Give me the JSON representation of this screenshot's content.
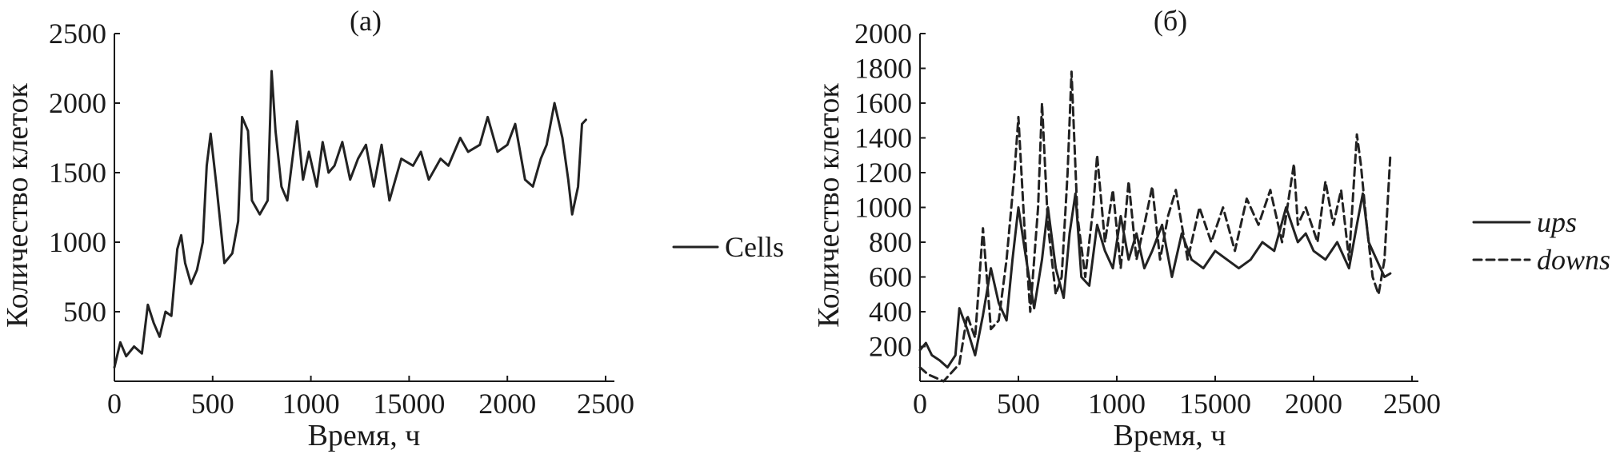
{
  "chart_data": [
    {
      "type": "line",
      "title": "(а)",
      "xlabel": "Время, ч",
      "ylabel": "Количество клеток",
      "xlim": [
        0,
        2500
      ],
      "ylim": [
        0,
        2500
      ],
      "x_ticks": [
        "0",
        "500",
        "1000",
        "15000",
        "2000",
        "2500"
      ],
      "y_ticks": [
        "500",
        "1000",
        "1500",
        "2000",
        "2500"
      ],
      "legend_position": "right",
      "series": [
        {
          "name": "Cells",
          "style": "solid",
          "x": [
            0,
            30,
            60,
            100,
            140,
            170,
            200,
            230,
            260,
            290,
            320,
            340,
            360,
            390,
            420,
            450,
            470,
            490,
            520,
            560,
            600,
            630,
            650,
            680,
            700,
            740,
            780,
            800,
            820,
            850,
            880,
            930,
            960,
            990,
            1030,
            1060,
            1090,
            1120,
            1160,
            1200,
            1240,
            1280,
            1320,
            1360,
            1400,
            1460,
            1520,
            1560,
            1600,
            1660,
            1700,
            1760,
            1800,
            1860,
            1900,
            1950,
            2000,
            2040,
            2090,
            2130,
            2170,
            2200,
            2240,
            2280,
            2310,
            2330,
            2360,
            2380,
            2400
          ],
          "y": [
            100,
            280,
            180,
            250,
            200,
            550,
            420,
            320,
            500,
            470,
            950,
            1050,
            850,
            700,
            800,
            1000,
            1550,
            1780,
            1400,
            850,
            920,
            1150,
            1900,
            1800,
            1300,
            1200,
            1300,
            2230,
            1800,
            1400,
            1300,
            1870,
            1450,
            1650,
            1400,
            1720,
            1500,
            1550,
            1720,
            1450,
            1600,
            1700,
            1400,
            1700,
            1300,
            1600,
            1550,
            1650,
            1450,
            1600,
            1550,
            1750,
            1650,
            1700,
            1900,
            1650,
            1700,
            1850,
            1450,
            1400,
            1600,
            1700,
            2000,
            1750,
            1450,
            1200,
            1400,
            1850,
            1880
          ]
        }
      ]
    },
    {
      "type": "line",
      "title": "(б)",
      "xlabel": "Время, ч",
      "ylabel": "Количество клеток",
      "xlim": [
        0,
        2500
      ],
      "ylim": [
        0,
        2000
      ],
      "x_ticks": [
        "0",
        "500",
        "1000",
        "15000",
        "2000",
        "2500"
      ],
      "y_ticks": [
        "200",
        "400",
        "600",
        "800",
        "1000",
        "1200",
        "1400",
        "1600",
        "1800",
        "2000"
      ],
      "legend_position": "right",
      "series": [
        {
          "name": "ups",
          "style": "solid",
          "x": [
            0,
            30,
            60,
            100,
            140,
            180,
            200,
            240,
            280,
            320,
            360,
            400,
            440,
            470,
            500,
            540,
            580,
            620,
            650,
            690,
            730,
            760,
            790,
            820,
            860,
            900,
            940,
            980,
            1020,
            1060,
            1100,
            1140,
            1180,
            1230,
            1280,
            1330,
            1380,
            1440,
            1500,
            1560,
            1620,
            1680,
            1740,
            1800,
            1860,
            1920,
            1960,
            2000,
            2060,
            2120,
            2180,
            2220,
            2250,
            2280,
            2320,
            2360,
            2390
          ],
          "y": [
            180,
            220,
            150,
            120,
            80,
            150,
            420,
            300,
            150,
            380,
            650,
            450,
            350,
            700,
            1000,
            700,
            420,
            700,
            1000,
            650,
            480,
            850,
            1080,
            600,
            550,
            900,
            750,
            650,
            950,
            700,
            850,
            650,
            750,
            900,
            600,
            850,
            700,
            650,
            750,
            700,
            650,
            700,
            800,
            750,
            1000,
            800,
            850,
            750,
            700,
            800,
            650,
            900,
            1080,
            800,
            700,
            600,
            620
          ]
        },
        {
          "name": "downs",
          "style": "dashed",
          "x": [
            0,
            40,
            80,
            120,
            160,
            200,
            240,
            280,
            320,
            360,
            400,
            440,
            480,
            500,
            530,
            560,
            600,
            620,
            650,
            690,
            720,
            750,
            770,
            800,
            840,
            880,
            900,
            940,
            980,
            1020,
            1060,
            1100,
            1140,
            1180,
            1220,
            1260,
            1300,
            1360,
            1420,
            1480,
            1540,
            1600,
            1660,
            1720,
            1780,
            1840,
            1900,
            1920,
            1960,
            2020,
            2060,
            2100,
            2140,
            2180,
            2220,
            2240,
            2270,
            2300,
            2330,
            2360,
            2390
          ],
          "y": [
            80,
            40,
            20,
            0,
            50,
            100,
            380,
            250,
            880,
            300,
            350,
            700,
            1200,
            1520,
            900,
            400,
            1000,
            1600,
            900,
            500,
            600,
            1200,
            1780,
            950,
            600,
            1000,
            1300,
            800,
            1100,
            650,
            1150,
            700,
            900,
            1120,
            700,
            950,
            1100,
            700,
            1000,
            800,
            1000,
            750,
            1050,
            900,
            1100,
            800,
            1250,
            900,
            1000,
            800,
            1150,
            900,
            1100,
            700,
            1420,
            1250,
            900,
            600,
            500,
            700,
            1300
          ]
        }
      ]
    }
  ]
}
